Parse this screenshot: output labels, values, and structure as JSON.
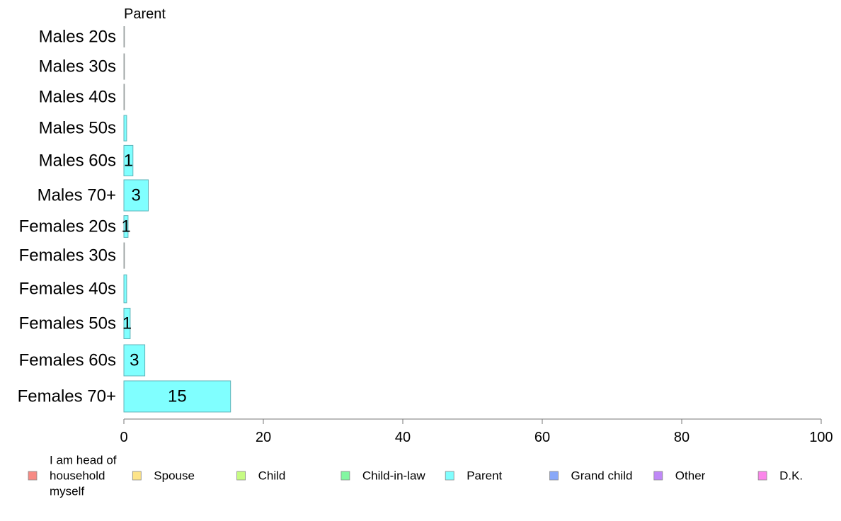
{
  "chart_data": {
    "type": "bar",
    "orientation": "horizontal",
    "title": "Parent",
    "xlabel": "",
    "ylabel": "",
    "categories": [
      "Males 20s",
      "Males 30s",
      "Males 40s",
      "Males 50s",
      "Males 60s",
      "Males 70+",
      "Females 20s",
      "Females 30s",
      "Females 40s",
      "Females 50s",
      "Females 60s",
      "Females 70+"
    ],
    "values": [
      0,
      0,
      0,
      0.4,
      1.3,
      3.5,
      0.6,
      0,
      0.4,
      0.9,
      3.0,
      15.3
    ],
    "data_labels": [
      "",
      "",
      "",
      "",
      "1",
      "3",
      "1",
      "",
      "",
      "1",
      "3",
      "15"
    ],
    "relative_widths": [
      0.66,
      0.82,
      0.82,
      0.82,
      0.98,
      1.0,
      0.7,
      0.82,
      0.9,
      0.98,
      1.0,
      1.0
    ],
    "xlim": [
      0,
      100
    ],
    "xticks": [
      "0",
      "20",
      "40",
      "60",
      "80",
      "100"
    ],
    "grid": false,
    "legend_position": "bottom",
    "legend": [
      {
        "label": "I am head of household myself",
        "lines": [
          "I am head of",
          "household",
          "myself"
        ],
        "color": "#f78a84"
      },
      {
        "label": "Spouse",
        "color": "#fde489"
      },
      {
        "label": "Child",
        "color": "#c6fb83"
      },
      {
        "label": "Child-in-law",
        "color": "#83f7a2"
      },
      {
        "label": "Parent",
        "color": "#80ffff"
      },
      {
        "label": "Grand child",
        "color": "#89a8f8"
      },
      {
        "label": "Other",
        "color": "#bf88f7"
      },
      {
        "label": "D.K.",
        "color": "#fb86ea"
      }
    ],
    "bar_color": "#80ffff",
    "bar_stroke": "#5fb3b8"
  }
}
